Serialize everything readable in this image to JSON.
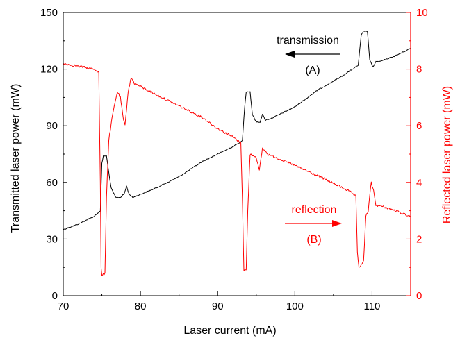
{
  "chart_data": {
    "type": "line",
    "xlabel": "Laser current (mA)",
    "ylabel_left": "Transmitted laser power (mW)",
    "ylabel_right": "Reflected laser power (mW)",
    "xlim": [
      70,
      115
    ],
    "ylim_left": [
      0,
      150
    ],
    "ylim_right": [
      0,
      10
    ],
    "x_ticks": [
      "70",
      "80",
      "90",
      "100",
      "110"
    ],
    "y_left_ticks": [
      "0",
      "30",
      "60",
      "90",
      "120",
      "150"
    ],
    "y_right_ticks": [
      "0",
      "2",
      "4",
      "6",
      "8",
      "10"
    ],
    "colors": {
      "transmission": "#000000",
      "reflection": "#ff0000",
      "axis_left": "#000000",
      "axis_right": "#ff0000"
    },
    "series": [
      {
        "axis": "left",
        "color": "#000000",
        "points": [
          [
            70,
            35
          ],
          [
            72,
            38
          ],
          [
            74,
            42
          ],
          [
            74.8,
            45
          ],
          [
            75.0,
            70
          ],
          [
            75.2,
            74
          ],
          [
            75.6,
            74
          ],
          [
            75.8,
            68
          ],
          [
            76.2,
            57
          ],
          [
            76.8,
            52
          ],
          [
            77.4,
            52
          ],
          [
            77.9,
            54
          ],
          [
            78.2,
            58
          ],
          [
            78.5,
            54
          ],
          [
            79,
            52
          ],
          [
            82,
            57
          ],
          [
            85,
            63
          ],
          [
            88,
            71
          ],
          [
            90,
            75
          ],
          [
            92,
            79
          ],
          [
            93.2,
            82
          ],
          [
            93.5,
            100
          ],
          [
            93.7,
            108
          ],
          [
            94.2,
            108
          ],
          [
            94.5,
            96
          ],
          [
            95,
            92
          ],
          [
            95.5,
            92
          ],
          [
            95.8,
            96
          ],
          [
            96.2,
            93
          ],
          [
            97,
            94
          ],
          [
            100,
            100
          ],
          [
            103,
            109
          ],
          [
            106,
            116
          ],
          [
            108.2,
            122
          ],
          [
            108.6,
            138
          ],
          [
            108.9,
            140
          ],
          [
            109.4,
            140
          ],
          [
            109.7,
            125
          ],
          [
            110.1,
            121
          ],
          [
            110.5,
            124
          ],
          [
            111,
            124
          ],
          [
            113,
            127
          ],
          [
            115,
            131
          ]
        ]
      },
      {
        "axis": "right",
        "color": "#ff0000",
        "points": [
          [
            70,
            8.2
          ],
          [
            72,
            8.1
          ],
          [
            74,
            8.0
          ],
          [
            74.6,
            7.9
          ],
          [
            74.8,
            4.0
          ],
          [
            74.9,
            1.0
          ],
          [
            75.0,
            0.7
          ],
          [
            75.4,
            0.8
          ],
          [
            75.6,
            3.5
          ],
          [
            75.9,
            5.5
          ],
          [
            76.4,
            6.4
          ],
          [
            77.0,
            7.2
          ],
          [
            77.4,
            7.0
          ],
          [
            77.8,
            6.2
          ],
          [
            78.0,
            6.0
          ],
          [
            78.4,
            7.2
          ],
          [
            78.8,
            7.7
          ],
          [
            79.2,
            7.5
          ],
          [
            82,
            7.1
          ],
          [
            85,
            6.7
          ],
          [
            88,
            6.3
          ],
          [
            90,
            5.9
          ],
          [
            92,
            5.6
          ],
          [
            93.0,
            5.4
          ],
          [
            93.2,
            3.5
          ],
          [
            93.4,
            0.9
          ],
          [
            93.7,
            0.9
          ],
          [
            93.9,
            3.0
          ],
          [
            94.2,
            5.0
          ],
          [
            95.0,
            4.9
          ],
          [
            95.4,
            4.4
          ],
          [
            95.8,
            5.2
          ],
          [
            96.5,
            5.0
          ],
          [
            100,
            4.6
          ],
          [
            104,
            4.1
          ],
          [
            107,
            3.7
          ],
          [
            107.9,
            3.5
          ],
          [
            108.1,
            1.5
          ],
          [
            108.3,
            1.0
          ],
          [
            108.9,
            1.2
          ],
          [
            109.2,
            2.8
          ],
          [
            109.5,
            3.0
          ],
          [
            109.9,
            4.0
          ],
          [
            110.2,
            3.7
          ],
          [
            110.5,
            3.2
          ],
          [
            112,
            3.1
          ],
          [
            115,
            2.8
          ]
        ]
      }
    ],
    "annotations": {
      "transmission_label": "transmission",
      "transmission_tag": "(A)",
      "reflection_label": "reflection",
      "reflection_tag": "(B)"
    }
  }
}
